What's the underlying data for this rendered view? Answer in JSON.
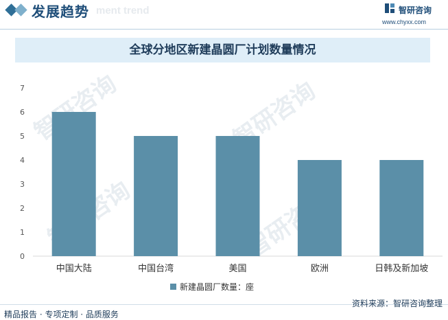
{
  "header": {
    "section_title": "发展趋势",
    "ghost_title": "ment trend",
    "brand": "智研咨询",
    "site": "www.chyxx.com"
  },
  "watermark": "智研咨询",
  "chart_data": {
    "type": "bar",
    "title": "全球分地区新建晶圆厂计划数量情况",
    "categories": [
      "中国大陆",
      "中国台湾",
      "美国",
      "欧洲",
      "日韩及新加坡"
    ],
    "series": [
      {
        "name": "新建晶圆厂数量：座",
        "values": [
          6,
          5,
          5,
          4,
          4
        ],
        "color": "#5b8fa8"
      }
    ],
    "yticks": [
      "0",
      "1",
      "2",
      "3",
      "4",
      "5",
      "6",
      "7"
    ],
    "ylim": [
      0,
      7
    ],
    "grid": false,
    "legend_position": "bottom"
  },
  "footer": {
    "left": "精品报告 · 专项定制 · 品质服务",
    "right": "资料来源：智研咨询整理"
  }
}
